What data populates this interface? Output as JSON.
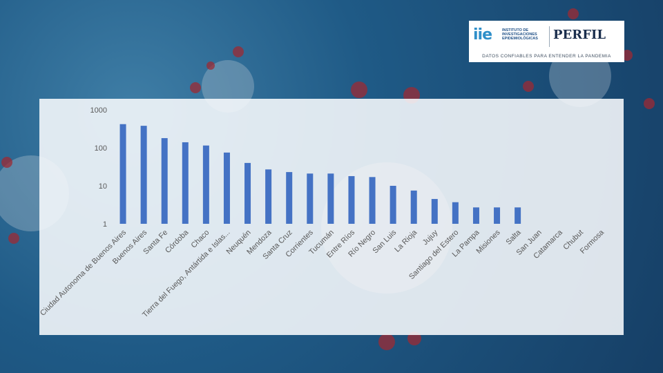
{
  "branding": {
    "iie_mark": "iie",
    "iie_text": "INSTITUTO DE INVESTIGACIONES EPIDEMIOLÓGICAS",
    "perfil": "PERFIL",
    "tagline": "DATOS CONFIABLES PARA ENTENDER LA PANDEMIA"
  },
  "colors": {
    "bar": "#4472c4",
    "panel": "#f8fafd",
    "background": "#1f5a86"
  },
  "chart_data": {
    "type": "bar",
    "yscale": "log",
    "ylim": [
      1,
      1000
    ],
    "yticks": [
      1,
      10,
      100,
      1000
    ],
    "ytick_labels": [
      "1",
      "10",
      "100",
      "1000"
    ],
    "grid": false,
    "legend": "none",
    "categories": [
      "Ciudad Autonoma de Buenos Aires",
      "Buenos Aires",
      "Santa Fe",
      "Córdoba",
      "Chaco",
      "Tierra del Fuego, Antártida e Islas...",
      "Neuquén",
      "Mendoza",
      "Santa Cruz",
      "Corrientes",
      "Tucumán",
      "Entre Ríos",
      "Río Negro",
      "San Luis",
      "La Rioja",
      "Jujuy",
      "Santiago del Estero",
      "La Pampa",
      "Misiones",
      "Salta",
      "San Juan",
      "Catamarca",
      "Chubut",
      "Formosa"
    ],
    "values": [
      420,
      380,
      180,
      140,
      115,
      75,
      40,
      27,
      23,
      21,
      21,
      18,
      17,
      10,
      7.5,
      4.5,
      3.7,
      2.7,
      2.7,
      2.7,
      0,
      0,
      0,
      0
    ]
  }
}
